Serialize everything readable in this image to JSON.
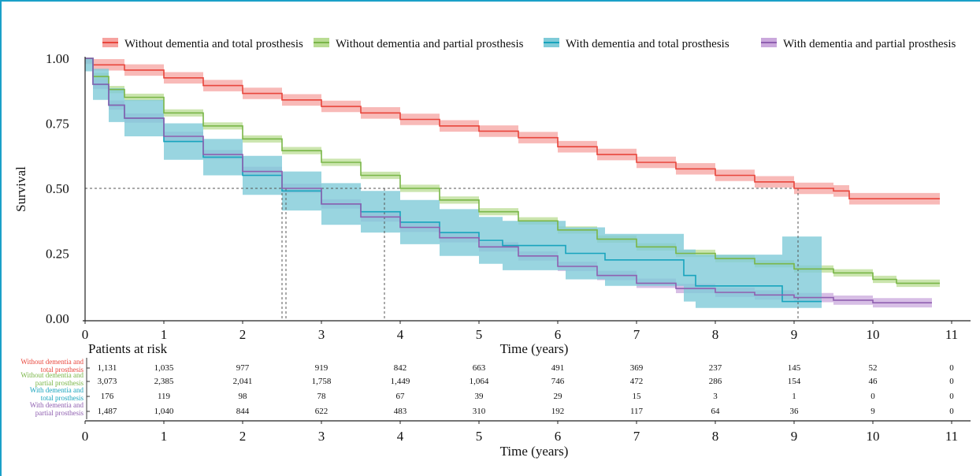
{
  "chart_data": {
    "type": "line",
    "subtype": "kaplan-meier survival with confidence bands",
    "ylabel": "Survival",
    "xlabel": "Time (years)",
    "xlim": [
      0,
      11
    ],
    "ylim": [
      0,
      1
    ],
    "x_ticks": [
      "0",
      "1",
      "2",
      "3",
      "4",
      "5",
      "6",
      "7",
      "8",
      "9",
      "10",
      "11"
    ],
    "y_ticks": [
      "0.00",
      "0.25",
      "0.50",
      "0.75",
      "1.00"
    ],
    "legend_position": "top",
    "median_guide_y": 0.5,
    "medians": [
      2.5,
      2.55,
      3.8,
      9.05
    ],
    "series": [
      {
        "name": "Without dementia and total prosthesis",
        "color": "#e8463c",
        "band_color": "#f6a3a0",
        "points": [
          [
            0,
            1.0
          ],
          [
            0.1,
            0.975
          ],
          [
            0.5,
            0.955
          ],
          [
            1,
            0.925
          ],
          [
            1.5,
            0.895
          ],
          [
            2,
            0.865
          ],
          [
            2.5,
            0.84
          ],
          [
            3,
            0.815
          ],
          [
            3.5,
            0.79
          ],
          [
            4,
            0.765
          ],
          [
            4.5,
            0.74
          ],
          [
            5,
            0.72
          ],
          [
            5.5,
            0.695
          ],
          [
            6,
            0.66
          ],
          [
            6.5,
            0.63
          ],
          [
            7,
            0.6
          ],
          [
            7.5,
            0.575
          ],
          [
            8,
            0.55
          ],
          [
            8.5,
            0.525
          ],
          [
            9,
            0.5
          ],
          [
            9.5,
            0.49
          ],
          [
            9.7,
            0.46
          ],
          [
            10,
            0.46
          ],
          [
            10.85,
            0.46
          ]
        ],
        "band": 0.022
      },
      {
        "name": "Without dementia and partial prosthesis",
        "color": "#7ab648",
        "band_color": "#b9dc93",
        "points": [
          [
            0,
            1.0
          ],
          [
            0.1,
            0.93
          ],
          [
            0.3,
            0.88
          ],
          [
            0.5,
            0.85
          ],
          [
            1,
            0.79
          ],
          [
            1.5,
            0.74
          ],
          [
            2,
            0.69
          ],
          [
            2.5,
            0.645
          ],
          [
            3,
            0.6
          ],
          [
            3.5,
            0.55
          ],
          [
            4,
            0.5
          ],
          [
            4.5,
            0.455
          ],
          [
            5,
            0.41
          ],
          [
            5.5,
            0.375
          ],
          [
            6,
            0.34
          ],
          [
            6.5,
            0.305
          ],
          [
            7,
            0.275
          ],
          [
            7.5,
            0.25
          ],
          [
            8,
            0.23
          ],
          [
            8.5,
            0.21
          ],
          [
            9,
            0.19
          ],
          [
            9.5,
            0.175
          ],
          [
            10,
            0.15
          ],
          [
            10.3,
            0.135
          ],
          [
            10.85,
            0.135
          ]
        ],
        "band": 0.014
      },
      {
        "name": "With dementia and total prosthesis",
        "color": "#18a4bd",
        "band_color": "#7fcbd8",
        "points": [
          [
            0,
            1.0
          ],
          [
            0.1,
            0.9
          ],
          [
            0.3,
            0.82
          ],
          [
            0.5,
            0.77
          ],
          [
            1,
            0.68
          ],
          [
            1.5,
            0.62
          ],
          [
            2,
            0.55
          ],
          [
            2.5,
            0.49
          ],
          [
            3,
            0.44
          ],
          [
            3.5,
            0.41
          ],
          [
            4,
            0.37
          ],
          [
            4.5,
            0.33
          ],
          [
            5,
            0.3
          ],
          [
            5.3,
            0.3
          ],
          [
            5.3,
            0.28
          ],
          [
            6.1,
            0.28
          ],
          [
            6.1,
            0.25
          ],
          [
            6.6,
            0.25
          ],
          [
            6.6,
            0.225
          ],
          [
            7.6,
            0.225
          ],
          [
            7.6,
            0.165
          ],
          [
            7.75,
            0.165
          ],
          [
            7.75,
            0.125
          ],
          [
            8.85,
            0.125
          ],
          [
            8.85,
            0.065
          ],
          [
            9.35,
            0.065
          ]
        ],
        "band_width": [
          0.05,
          0.06,
          0.065,
          0.07,
          0.07,
          0.07,
          0.075,
          0.075,
          0.08,
          0.08,
          0.085,
          0.09,
          0.09,
          0.09,
          0.095,
          0.095,
          0.1,
          0.1,
          0.1,
          0.1,
          0.1,
          0.12,
          0.12,
          0.12,
          0.25,
          0.25
        ],
        "band": 0.07
      },
      {
        "name": "With dementia and partial prosthesis",
        "color": "#8f5fb0",
        "band_color": "#caa8dc",
        "points": [
          [
            0,
            1.0
          ],
          [
            0.1,
            0.9
          ],
          [
            0.3,
            0.82
          ],
          [
            0.5,
            0.77
          ],
          [
            1,
            0.7
          ],
          [
            1.5,
            0.63
          ],
          [
            2,
            0.565
          ],
          [
            2.5,
            0.5
          ],
          [
            3,
            0.44
          ],
          [
            3.5,
            0.39
          ],
          [
            4,
            0.35
          ],
          [
            4.5,
            0.31
          ],
          [
            5,
            0.275
          ],
          [
            5.5,
            0.24
          ],
          [
            6,
            0.2
          ],
          [
            6.5,
            0.165
          ],
          [
            7,
            0.135
          ],
          [
            7.5,
            0.115
          ],
          [
            8,
            0.1
          ],
          [
            8.5,
            0.09
          ],
          [
            9,
            0.08
          ],
          [
            9.5,
            0.07
          ],
          [
            10,
            0.06
          ],
          [
            10.75,
            0.06
          ]
        ],
        "band": 0.018
      }
    ],
    "risk_table": {
      "title": "Patients at risk",
      "xlabel": "Time (years)",
      "times": [
        0,
        1,
        2,
        3,
        4,
        5,
        6,
        7,
        8,
        9,
        10,
        11
      ],
      "rows": [
        {
          "label_line1": "Without dementia and",
          "label_line2": "total prosthesis",
          "color": "#e8463c",
          "values": [
            "1,131",
            "1,035",
            "977",
            "919",
            "842",
            "663",
            "491",
            "369",
            "237",
            "145",
            "52",
            "0"
          ]
        },
        {
          "label_line1": "Without dementia and",
          "label_line2": "partial prosthesis",
          "color": "#7ab648",
          "values": [
            "3,073",
            "2,385",
            "2,041",
            "1,758",
            "1,449",
            "1,064",
            "746",
            "472",
            "286",
            "154",
            "46",
            "0"
          ]
        },
        {
          "label_line1": "With dementia and",
          "label_line2": "total prosthesis",
          "color": "#18a4bd",
          "values": [
            "176",
            "119",
            "98",
            "78",
            "67",
            "39",
            "29",
            "15",
            "3",
            "1",
            "0",
            "0"
          ]
        },
        {
          "label_line1": "With dementia and",
          "label_line2": "partial prosthesis",
          "color": "#8f5fb0",
          "values": [
            "1,487",
            "1,040",
            "844",
            "622",
            "483",
            "310",
            "192",
            "117",
            "64",
            "36",
            "9",
            "0"
          ]
        }
      ]
    }
  }
}
